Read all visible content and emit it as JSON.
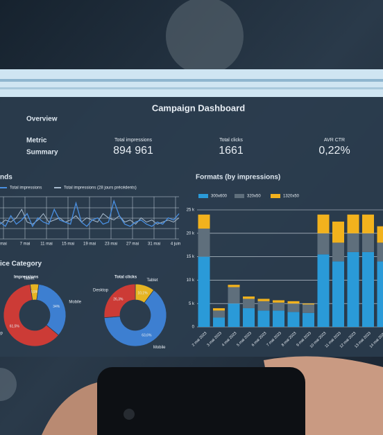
{
  "header": {
    "title": "Campaign Dashboard"
  },
  "overview": {
    "title": "Overview",
    "label_line1": "Metric",
    "label_line2": "Summary",
    "kpis": [
      {
        "label": "Total impressions",
        "value": "894 961"
      },
      {
        "label": "Total clicks",
        "value": "1661"
      },
      {
        "label": "AVR CTR",
        "value": "0,22%"
      }
    ]
  },
  "trends": {
    "title": "nds",
    "ylim": [
      0,
      100
    ],
    "x_labels": [
      "mai",
      "7 mai",
      "11 mai",
      "15 mai",
      "19 mai",
      "23 mai",
      "27 mai",
      "31 mai",
      "4 juin"
    ],
    "series": [
      {
        "name": "Total impressions",
        "color": "#4a90e2",
        "values": [
          40,
          30,
          55,
          35,
          45,
          60,
          30,
          50,
          40,
          35,
          70,
          45,
          40,
          35,
          85,
          40,
          30,
          45,
          50,
          35,
          40,
          90,
          55,
          35,
          30,
          40,
          45,
          35,
          30,
          40,
          35,
          50,
          45,
          60
        ]
      },
      {
        "name": "Total impressions (28 jours précédents)",
        "color": "#a9bccf",
        "values": [
          35,
          45,
          40,
          50,
          70,
          40,
          35,
          45,
          60,
          40,
          45,
          50,
          40,
          45,
          55,
          40,
          50,
          45,
          40,
          60,
          50,
          45,
          55,
          40,
          45,
          35,
          50,
          40,
          45,
          35,
          40,
          45,
          40,
          50
        ]
      }
    ]
  },
  "device": {
    "title": "ice Category",
    "charts": [
      {
        "title": "Impressions",
        "slices": [
          {
            "name": "Tablet",
            "value": 4.5,
            "label": "4,5%",
            "color": "#e6b422"
          },
          {
            "name": "Mobile",
            "value": 34,
            "label": "34%",
            "color": "#3d7fd1"
          },
          {
            "name": "Desktop",
            "value": 61.5,
            "label": "61,5%",
            "color": "#cc3b36"
          }
        ]
      },
      {
        "title": "Total clicks",
        "slices": [
          {
            "name": "Tablet",
            "value": 10.1,
            "label": "10,1%",
            "color": "#e6b422"
          },
          {
            "name": "Mobile",
            "value": 63.6,
            "label": "63,6%",
            "color": "#3d7fd1"
          },
          {
            "name": "Desktop",
            "value": 26.3,
            "label": "26,3%",
            "color": "#cc3b36"
          }
        ]
      }
    ]
  },
  "chart_data": {
    "type": "bar",
    "title": "Formats (by impressions)",
    "categories": [
      "2 mai 2023",
      "3 mai 2023",
      "4 mai 2023",
      "5 mai 2023",
      "6 mai 2023",
      "7 mai 2023",
      "8 mai 2023",
      "9 mai 2023",
      "10 mai 2023",
      "11 mai 2023",
      "12 mai 2023",
      "13 mai 2023",
      "14 mai 2023"
    ],
    "series": [
      {
        "name": "300x600",
        "color": "#2a9ad8",
        "values": [
          15000,
          2000,
          5000,
          4000,
          3500,
          3500,
          3200,
          3000,
          15500,
          14000,
          16000,
          16000,
          14000
        ]
      },
      {
        "name": "320x50",
        "color": "#5f6f7c",
        "values": [
          6000,
          1500,
          3500,
          2000,
          2000,
          1700,
          1800,
          1800,
          4500,
          4000,
          4000,
          4000,
          4000
        ]
      },
      {
        "name": "1320x50",
        "color": "#f2b21d",
        "values": [
          3000,
          500,
          500,
          500,
          500,
          500,
          500,
          200,
          4000,
          4500,
          4000,
          4000,
          3500
        ]
      }
    ],
    "ylim": [
      0,
      25000
    ],
    "yticks": [
      0,
      {
        "value": 5000,
        "label": "5 k"
      },
      {
        "value": 10000,
        "label": "10 k"
      },
      {
        "value": 15000,
        "label": "15 k"
      },
      {
        "value": 20000,
        "label": "20 k"
      },
      {
        "value": 25000,
        "label": "25 k"
      }
    ],
    "grid": true,
    "stacked": true
  }
}
